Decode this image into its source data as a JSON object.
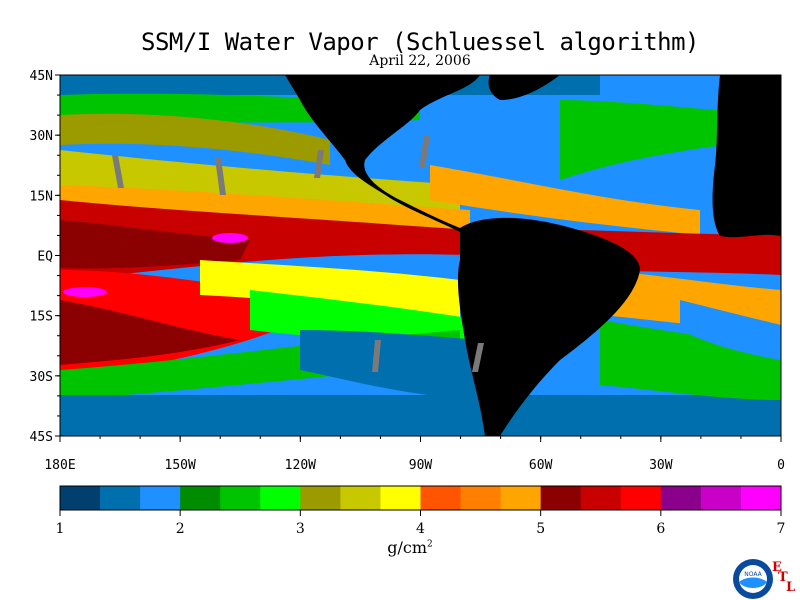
{
  "title": "SSM/I Water Vapor (Schluessel algorithm)",
  "date": "April 22, 2006",
  "map": {
    "lat_labels": [
      "45N",
      "30N",
      "15N",
      "EQ",
      "15S",
      "30S",
      "45S"
    ],
    "lat_values": [
      45,
      30,
      15,
      0,
      -15,
      -30,
      -45
    ],
    "lon_labels": [
      "180E",
      "150W",
      "120W",
      "90W",
      "60W",
      "30W",
      "0"
    ],
    "lon_values": [
      -180,
      -150,
      -120,
      -90,
      -60,
      -30,
      0
    ],
    "extent": {
      "lon": [
        -180,
        0
      ],
      "lat": [
        -45,
        45
      ]
    }
  },
  "colorbar": {
    "colors": [
      "#003f6e",
      "#006fae",
      "#1e90ff",
      "#008c00",
      "#00c400",
      "#00ff00",
      "#9b9b00",
      "#c8c800",
      "#ffff00",
      "#ff5500",
      "#ff7f00",
      "#ffa500",
      "#8b0000",
      "#c80000",
      "#ff0000",
      "#8b008b",
      "#c800c8",
      "#ff00ff"
    ],
    "tick_labels": [
      "1",
      "2",
      "3",
      "4",
      "5",
      "6",
      "7"
    ],
    "tick_values": [
      1,
      2,
      3,
      4,
      5,
      6,
      7
    ],
    "range": [
      1,
      7
    ],
    "units": "g/cm",
    "units_exp": "2"
  },
  "logo": {
    "text": "NOAA",
    "org_letters": [
      "E",
      "T",
      "L"
    ]
  }
}
